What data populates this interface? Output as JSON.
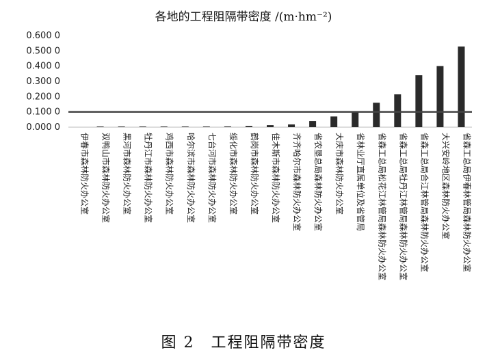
{
  "chart_data": {
    "type": "bar",
    "title": "各地的工程阻隔带密度 /(m·hm⁻²)",
    "caption": "图 2　工程阻隔带密度",
    "yticks": [
      "0.000 0",
      "0.100 0",
      "0.200 0",
      "0.300 0",
      "0.400 0",
      "0.500 0",
      "0.600 0"
    ],
    "ylim": [
      0,
      0.6
    ],
    "reference_line": 0.1,
    "grid": false,
    "categories": [
      "伊春市森林防火办公室",
      "双鸭山市森林防火办公室",
      "黑河市森林防火办公室",
      "牡丹江市森林防火办公室",
      "鸡西市森林防火办公室",
      "哈尔滨市森林防火办公室",
      "七台河市森林防火办公室",
      "绥化市森林防火办公室",
      "鹤岗市森林防火办公室",
      "佳木斯市森林防火办公室",
      "齐齐哈尔市森林防火办公室",
      "省农垦总局森林防火办公室",
      "大庆市森林防火办公室",
      "省林业厅直属单位及省管局",
      "省森工总局松花江林管局森林防火办公室",
      "省森工总局牡丹江林管局森林防火办公室",
      "省森工总局合江林管局森林防火办公室",
      "大兴安岭地区森林防火办公室",
      "省森工总局伊春林管局森林防火办公室"
    ],
    "values": [
      0.0,
      0.003,
      0.003,
      0.003,
      0.003,
      0.004,
      0.004,
      0.005,
      0.008,
      0.013,
      0.018,
      0.04,
      0.07,
      0.1,
      0.16,
      0.215,
      0.34,
      0.4,
      0.528
    ],
    "bar_color": "#2a2a2a",
    "line_color": "#444444"
  }
}
